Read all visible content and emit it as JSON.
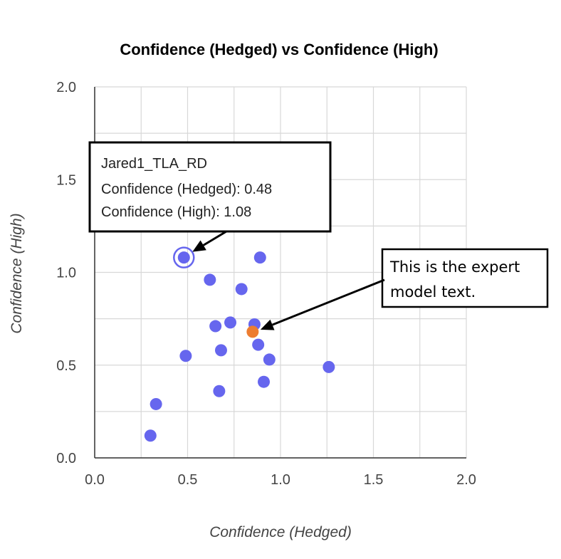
{
  "chart_data": {
    "type": "scatter",
    "title": "Confidence (Hedged) vs Confidence (High)",
    "xlabel": "Confidence (Hedged)",
    "ylabel": "Confidence (High)",
    "xlim": [
      0,
      2
    ],
    "ylim": [
      0,
      2
    ],
    "xticks": [
      "0.0",
      "0.5",
      "1.0",
      "1.5",
      "2.0"
    ],
    "yticks": [
      "0.0",
      "0.5",
      "1.0",
      "1.5",
      "2.0"
    ],
    "grid": true,
    "series": [
      {
        "color": "#6666ee",
        "points": [
          {
            "x": 0.48,
            "y": 1.08
          },
          {
            "x": 0.89,
            "y": 1.08
          },
          {
            "x": 0.62,
            "y": 0.96
          },
          {
            "x": 0.79,
            "y": 0.91
          },
          {
            "x": 0.65,
            "y": 0.71
          },
          {
            "x": 0.73,
            "y": 0.73
          },
          {
            "x": 0.86,
            "y": 0.72
          },
          {
            "x": 0.88,
            "y": 0.61
          },
          {
            "x": 0.68,
            "y": 0.58
          },
          {
            "x": 0.49,
            "y": 0.55
          },
          {
            "x": 0.94,
            "y": 0.53
          },
          {
            "x": 1.26,
            "y": 0.49
          },
          {
            "x": 0.91,
            "y": 0.41
          },
          {
            "x": 0.67,
            "y": 0.36
          },
          {
            "x": 0.33,
            "y": 0.29
          },
          {
            "x": 0.3,
            "y": 0.12
          }
        ]
      },
      {
        "color": "#ed7d31",
        "points": [
          {
            "x": 0.85,
            "y": 0.68
          }
        ]
      }
    ],
    "tooltip": {
      "line1": "Jared1_TLA_RD",
      "line2": "Confidence (Hedged): 0.48",
      "line3": "Confidence (High): 1.08",
      "target": {
        "x": 0.48,
        "y": 1.08
      }
    },
    "callout": {
      "line1": "This is the expert",
      "line2": "model text.",
      "target": {
        "x": 0.85,
        "y": 0.68
      }
    }
  }
}
